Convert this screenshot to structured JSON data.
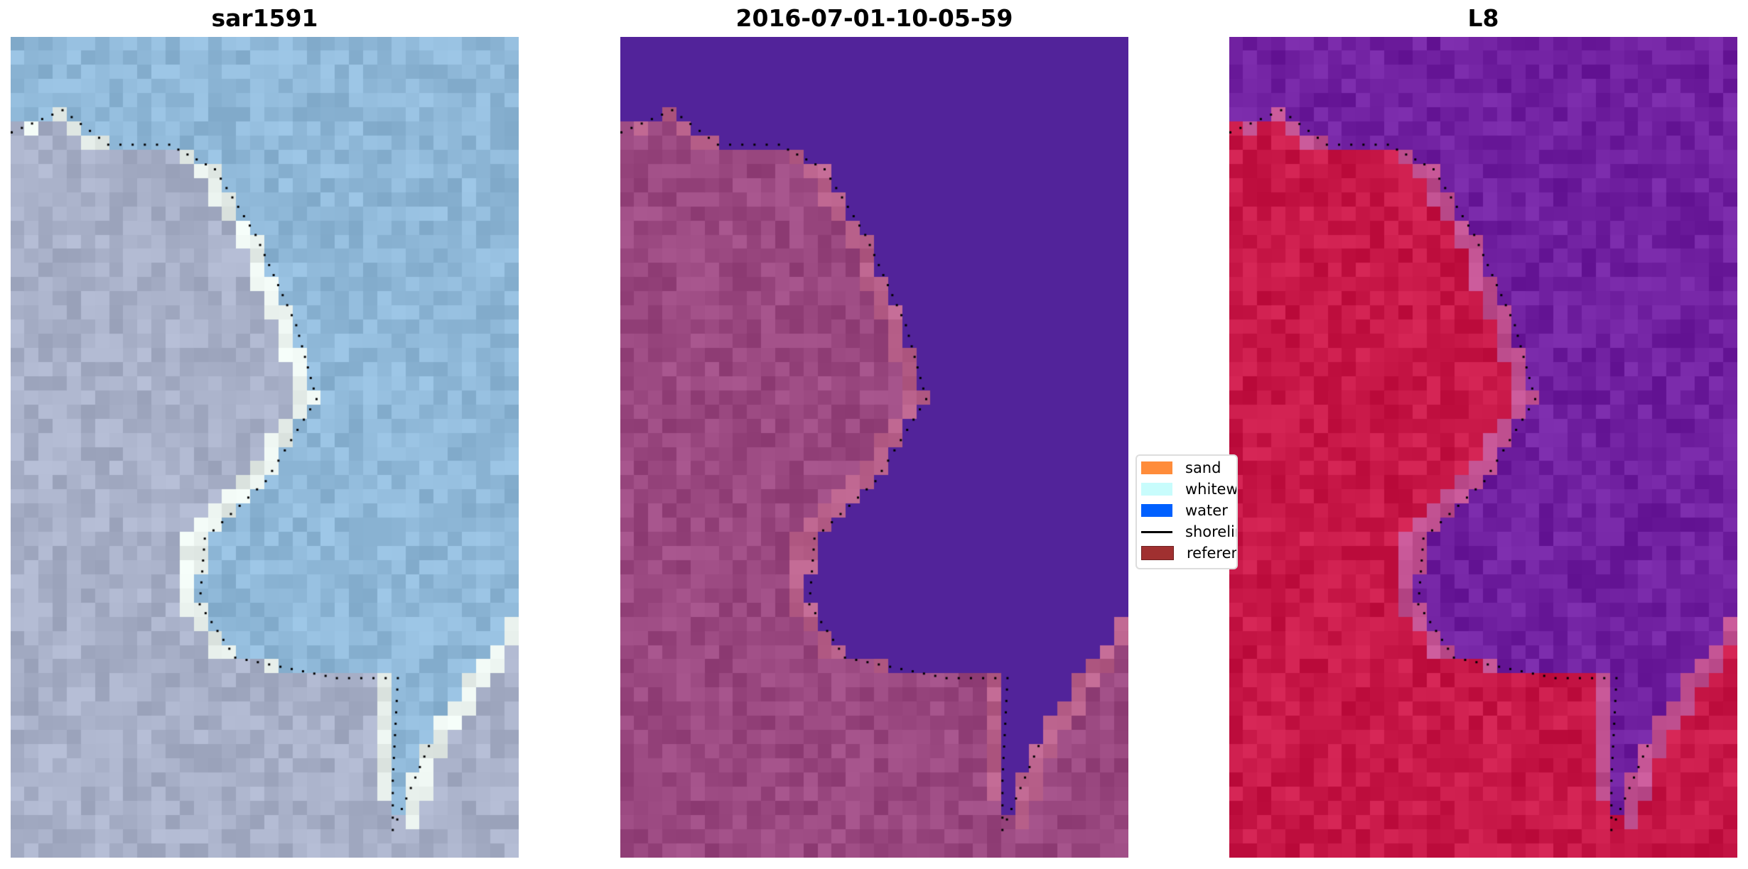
{
  "panels": [
    {
      "title": "sar1591",
      "land_color": "#a8b0c8",
      "water_color": "#8fb8d8",
      "shore_color": "#e8f0ec"
    },
    {
      "title": "2016-07-01-10-05-59",
      "land_color": "#9a4880",
      "water_color": "#52239a",
      "shore_color": "#b8608a"
    },
    {
      "title": "L8",
      "land_color": "#c81848",
      "water_color": "#7020a0",
      "shore_color": "#c05090"
    }
  ],
  "legend": [
    {
      "label": "sand",
      "color": "#ff8c3a",
      "kind": "patch"
    },
    {
      "label": "whitewater",
      "color": "#c8fcfc",
      "kind": "patch"
    },
    {
      "label": "water",
      "color": "#0060ff",
      "kind": "patch"
    },
    {
      "label": "shoreline",
      "color": "#000000",
      "kind": "line"
    },
    {
      "label": "reference",
      "color": "#a03030",
      "kind": "patch"
    }
  ]
}
